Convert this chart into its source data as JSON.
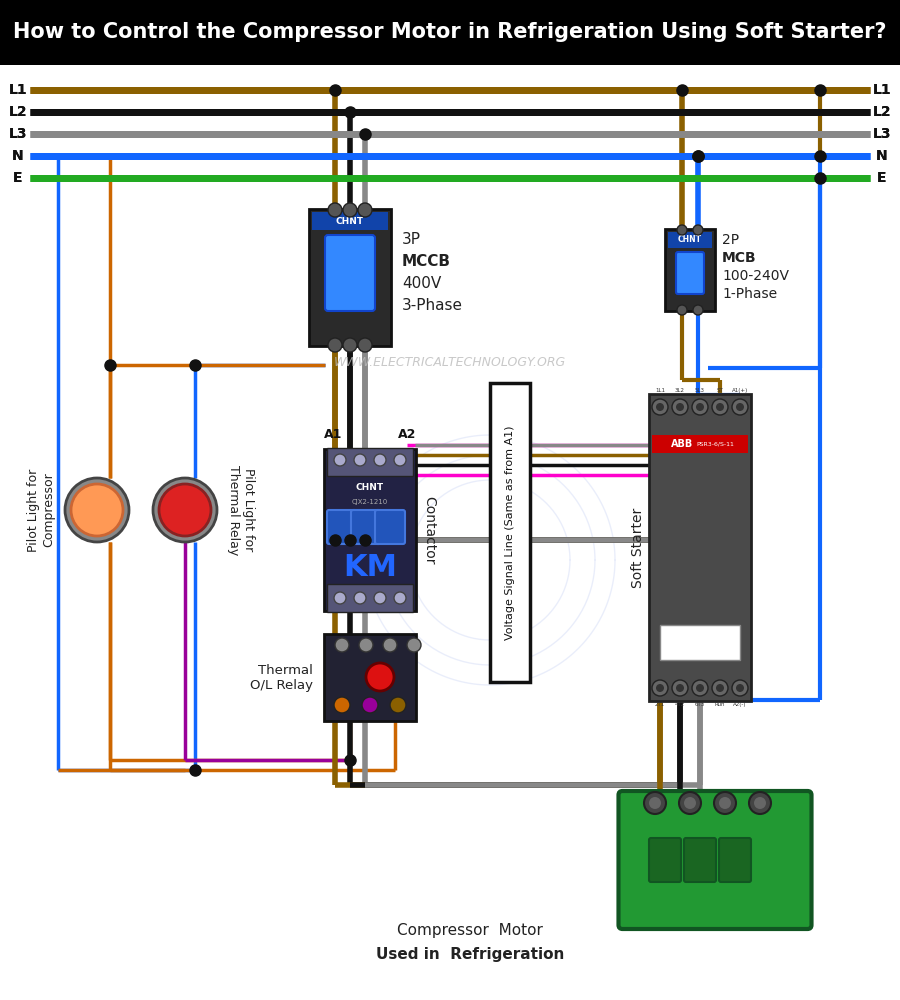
{
  "title": "How to Control the Compressor Motor in Refrigeration Using Soft Starter?",
  "title_bg": "#000000",
  "title_color": "#ffffff",
  "bg_color": "#ffffff",
  "watermark": "WWW.ELECTRICALTECHNOLOGY.ORG",
  "bus_L1_color": "#8B6000",
  "bus_L2_color": "#111111",
  "bus_L3_color": "#888888",
  "bus_N_color": "#1166ff",
  "bus_E_color": "#22aa22",
  "wire_brown": "#8B6000",
  "wire_black": "#111111",
  "wire_gray": "#888888",
  "wire_blue": "#1166ff",
  "wire_green": "#22aa22",
  "wire_orange": "#cc6600",
  "wire_purple": "#990099",
  "wire_magenta": "#ff00cc",
  "mccb_label": [
    "3P",
    "MCCB",
    "400V",
    "3-Phase"
  ],
  "mcb_label": [
    "2P",
    "MCB",
    "100-240V",
    "1-Phase"
  ]
}
